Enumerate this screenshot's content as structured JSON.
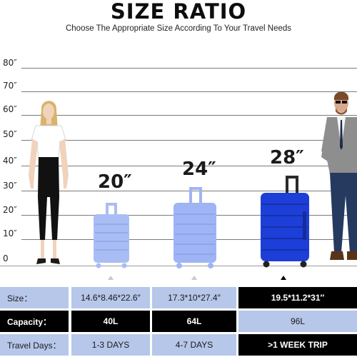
{
  "header": {
    "title": "SIZE RATIO",
    "subtitle": "Choose The Appropriate Size According To Your Travel Needs"
  },
  "scale": {
    "ticks": [
      "80″",
      "70″",
      "60″",
      "50″",
      "40″",
      "30″",
      "20″",
      "10″",
      "0"
    ]
  },
  "suitcases": [
    {
      "size_label": "20″",
      "color": "#a9bdf5"
    },
    {
      "size_label": "24″",
      "color": "#9fb4f5"
    },
    {
      "size_label": "28″",
      "color": "#1d3fd8"
    }
  ],
  "table": {
    "rows": [
      {
        "label": "Size：",
        "values": [
          "14.6*8.46*22.6″",
          "17.3*10*27.4″",
          "19.5*11.2*31″"
        ]
      },
      {
        "label": "Capacity：",
        "values": [
          "40L",
          "64L",
          "96L"
        ]
      },
      {
        "label": "Travel Days：",
        "values": [
          "1-3 DAYS",
          "4-7 DAYS",
          ">1 WEEK TRIP"
        ]
      }
    ]
  },
  "colors": {
    "light_blue": "#b7c7ea",
    "dark_blue": "#1d3fd8",
    "black": "#000000"
  }
}
